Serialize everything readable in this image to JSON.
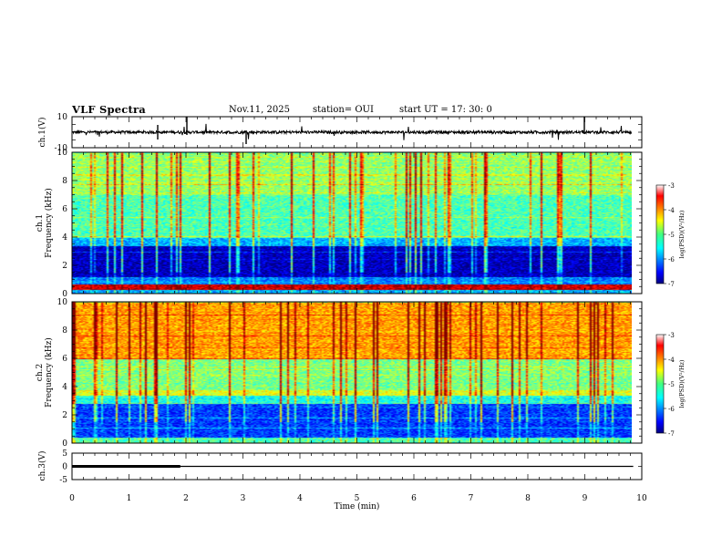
{
  "header": {
    "title": "VLF Spectra",
    "date": "Nov.11, 2025",
    "station": "station= OUI",
    "start": "start  UT =   17: 30: 0"
  },
  "chart_data": [
    {
      "type": "line",
      "name": "ch1-waveform",
      "ylabel": "ch.1(V)",
      "ylim": [
        -10,
        10
      ],
      "yticks": [
        "10",
        "-10"
      ],
      "xlim": [
        0,
        10
      ],
      "description_values": {
        "baseline": 0.0,
        "typical_amplitude": 1.5
      }
    },
    {
      "type": "heatmap",
      "name": "ch1-spectrogram",
      "ylabel": "ch.1 Frequency (kHz)",
      "ylim": [
        0,
        10
      ],
      "yticks": [
        "0",
        "2",
        "4",
        "6",
        "8",
        "10"
      ],
      "xlim": [
        0,
        10
      ],
      "colorbar": {
        "label": "log(PSD)(V²/Hz)",
        "range": [
          -7,
          -3
        ],
        "ticks": [
          "-3",
          "-4",
          "-5",
          "-6",
          "-7"
        ]
      },
      "bands": [
        {
          "f": [
            0,
            0.3
          ],
          "level": 0.3
        },
        {
          "f": [
            0.3,
            0.7
          ],
          "level": 0.92
        },
        {
          "f": [
            0.7,
            1.2
          ],
          "level": 0.25
        },
        {
          "f": [
            1.2,
            3.4
          ],
          "level": 0.06
        },
        {
          "f": [
            3.4,
            4.0
          ],
          "level": 0.3
        },
        {
          "f": [
            4.0,
            7.0
          ],
          "level": 0.45
        },
        {
          "f": [
            7.0,
            10
          ],
          "level": 0.52
        }
      ]
    },
    {
      "type": "heatmap",
      "name": "ch2-spectrogram",
      "ylabel": "ch.2 Frequency (kHz)",
      "ylim": [
        0,
        10
      ],
      "yticks": [
        "0",
        "2",
        "4",
        "6",
        "8",
        "10"
      ],
      "xlim": [
        0,
        10
      ],
      "colorbar": {
        "label": "log(PSD)(V²/Hz)",
        "range": [
          -7,
          -3
        ],
        "ticks": [
          "-3",
          "-4",
          "-5",
          "-6",
          "-7"
        ]
      },
      "bands": [
        {
          "f": [
            0,
            0.4
          ],
          "level": 0.45
        },
        {
          "f": [
            0.4,
            2.8
          ],
          "level": 0.18
        },
        {
          "f": [
            2.8,
            3.4
          ],
          "level": 0.4
        },
        {
          "f": [
            3.4,
            3.8
          ],
          "level": 0.6
        },
        {
          "f": [
            3.8,
            6.0
          ],
          "level": 0.5
        },
        {
          "f": [
            6.0,
            10
          ],
          "level": 0.72
        }
      ]
    },
    {
      "type": "line",
      "name": "ch3-trigger",
      "ylabel": "ch.3(V)",
      "ylim": [
        -5,
        5
      ],
      "yticks": [
        "5",
        "0",
        "-5"
      ],
      "xlim": [
        0,
        10
      ],
      "x": [
        0,
        1.9,
        1.9,
        9.85
      ],
      "y": [
        0,
        0,
        0,
        0
      ],
      "thick_segment_x": [
        0,
        1.9
      ]
    }
  ],
  "xaxis": {
    "label": "Time  (min)",
    "ticks": [
      "0",
      "1",
      "2",
      "3",
      "4",
      "5",
      "6",
      "7",
      "8",
      "9",
      "10"
    ]
  }
}
